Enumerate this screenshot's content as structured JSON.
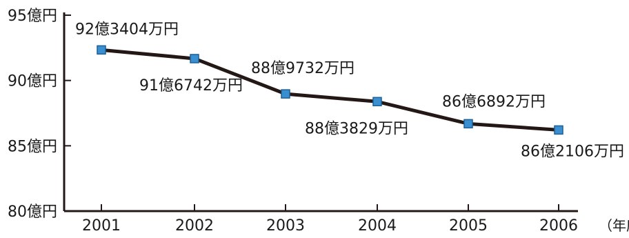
{
  "chart_data": {
    "type": "line",
    "categories": [
      "2001",
      "2002",
      "2003",
      "2004",
      "2005",
      "2006"
    ],
    "values": [
      92.3404,
      91.6742,
      88.9732,
      88.3829,
      86.6892,
      86.2106
    ],
    "data_labels": [
      "92億3404万円",
      "91億6742万円",
      "88億9732万円",
      "88億3829万円",
      "86億6892万円",
      "86億2106万円"
    ],
    "y_ticks": [
      {
        "value": 95,
        "label": "95億円"
      },
      {
        "value": 90,
        "label": "90億円"
      },
      {
        "value": 85,
        "label": "85億円"
      },
      {
        "value": 80,
        "label": "80億円"
      }
    ],
    "ylim": [
      80,
      95
    ],
    "x_unit_label": "（年度）",
    "title": "",
    "xlabel": "",
    "ylabel": "",
    "grid": false,
    "colors": {
      "line": "#231815",
      "marker": "#3a8fd0",
      "marker_stroke": "#1d5f96",
      "axis": "#231815",
      "text": "#1a1a1a"
    }
  }
}
